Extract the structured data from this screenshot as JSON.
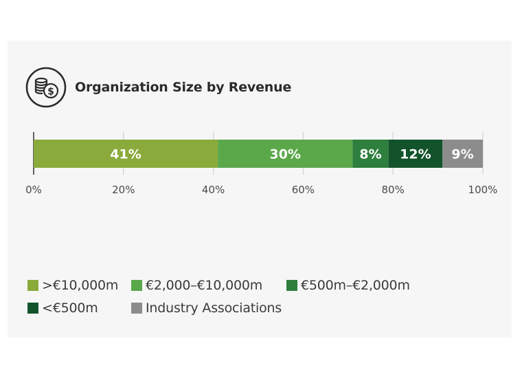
{
  "chart_data": {
    "type": "bar",
    "orientation": "horizontal-stacked",
    "title": "Organization Size by Revenue",
    "icon": "coins-dollar-icon",
    "xlim": [
      0,
      100
    ],
    "x_ticks": [
      "0%",
      "20%",
      "40%",
      "60%",
      "80%",
      "100%"
    ],
    "series": [
      {
        "name": ">€10,000m",
        "value": 41,
        "label": "41%",
        "color": "#8aaa3b"
      },
      {
        "name": "€2,000–€10,000m",
        "value": 30,
        "label": "30%",
        "color": "#5aa84a"
      },
      {
        "name": "€500m–€2,000m",
        "value": 8,
        "label": "8%",
        "color": "#2e7f3d"
      },
      {
        "name": "<€500m",
        "value": 12,
        "label": "12%",
        "color": "#13532c"
      },
      {
        "name": "Industry Associations",
        "value": 9,
        "label": "9%",
        "color": "#8c8c8c"
      }
    ],
    "legend_position": "bottom",
    "grid": true
  }
}
